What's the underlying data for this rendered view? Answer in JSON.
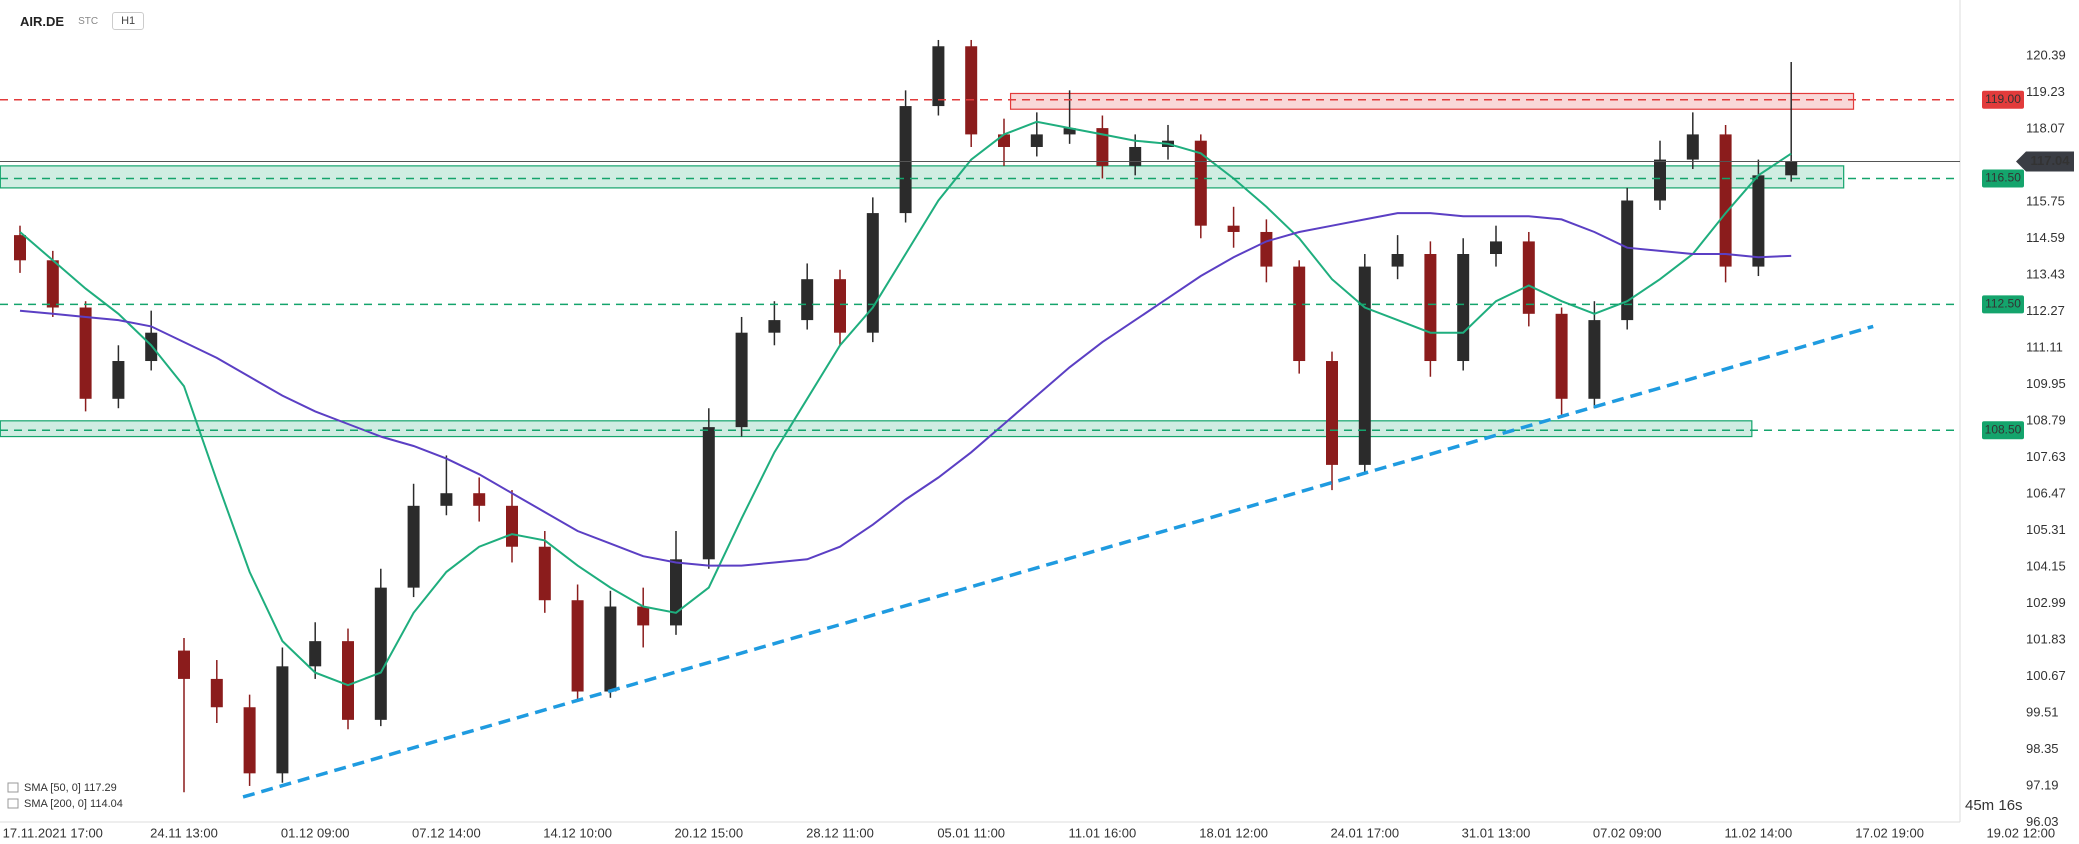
{
  "header": {
    "symbol": "AIR.DE",
    "market": "STC",
    "interval": "H1"
  },
  "chart_data": {
    "type": "candlestick",
    "categories": [
      null,
      "17.11.2021 17:00",
      null,
      null,
      null,
      "24.11 13:00",
      null,
      null,
      null,
      "01.12 09:00",
      null,
      null,
      null,
      "07.12 14:00",
      null,
      null,
      null,
      "14.12 10:00",
      null,
      null,
      null,
      "20.12 15:00",
      null,
      null,
      null,
      "28.12 11:00",
      null,
      null,
      null,
      "05.01 11:00",
      null,
      null,
      null,
      "11.01 16:00",
      null,
      null,
      null,
      "18.01 12:00",
      null,
      null,
      null,
      "24.01 17:00",
      null,
      null,
      null,
      "31.01 13:00",
      null,
      null,
      null,
      "07.02 09:00",
      null,
      null,
      null,
      "11.02 14:00",
      null,
      null,
      null,
      "17.02 19:00",
      null,
      null,
      null,
      "19.02 12:00"
    ],
    "open": [
      114.7,
      113.9,
      112.4,
      109.5,
      110.7,
      101.5,
      100.6,
      99.7,
      97.6,
      101.0,
      101.8,
      99.3,
      103.5,
      106.1,
      106.5,
      106.1,
      104.8,
      103.1,
      100.2,
      102.9,
      102.3,
      104.4,
      108.6,
      111.6,
      112.0,
      113.3,
      111.6,
      115.4,
      118.8,
      120.7,
      117.9,
      117.5,
      117.9,
      118.1,
      116.9,
      117.5,
      117.7,
      115.0,
      114.8,
      113.7,
      110.7,
      107.4,
      113.7,
      114.1,
      110.7,
      114.1,
      114.5,
      112.2,
      109.5,
      112.0,
      115.8,
      117.1,
      117.9,
      113.7,
      116.6,
      null,
      null,
      null,
      null,
      null,
      null,
      null
    ],
    "high": [
      115.0,
      114.2,
      112.6,
      111.2,
      112.3,
      101.9,
      101.2,
      100.1,
      101.6,
      102.4,
      102.2,
      104.1,
      106.8,
      107.7,
      107.0,
      106.6,
      105.3,
      103.6,
      103.4,
      103.5,
      105.3,
      109.2,
      112.1,
      112.6,
      113.8,
      113.6,
      115.9,
      119.3,
      120.9,
      120.9,
      118.4,
      118.6,
      119.3,
      118.5,
      117.9,
      118.2,
      117.9,
      115.6,
      115.2,
      113.9,
      111.0,
      114.1,
      114.7,
      114.5,
      114.6,
      115.0,
      114.8,
      112.4,
      112.6,
      116.2,
      117.7,
      118.6,
      118.2,
      117.1,
      120.2,
      null,
      null,
      null,
      null,
      null,
      null,
      null
    ],
    "low": [
      113.5,
      112.1,
      109.1,
      109.2,
      110.4,
      97.0,
      99.2,
      97.2,
      97.3,
      100.6,
      99.0,
      99.1,
      103.2,
      105.8,
      105.6,
      104.3,
      102.7,
      99.9,
      100.0,
      101.6,
      102.0,
      104.1,
      108.3,
      111.2,
      111.7,
      111.2,
      111.3,
      115.1,
      118.5,
      117.5,
      116.9,
      117.2,
      117.6,
      116.5,
      116.6,
      117.1,
      114.6,
      114.3,
      113.2,
      110.3,
      106.6,
      107.1,
      113.3,
      110.2,
      110.4,
      113.7,
      111.8,
      109.0,
      109.2,
      111.7,
      115.5,
      116.8,
      113.2,
      113.4,
      116.4,
      null,
      null,
      null,
      null,
      null,
      null,
      null
    ],
    "close": [
      113.9,
      112.4,
      109.5,
      110.7,
      111.6,
      100.6,
      99.7,
      97.6,
      101.0,
      101.8,
      99.3,
      103.5,
      106.1,
      106.5,
      106.1,
      104.8,
      103.1,
      100.2,
      102.9,
      102.3,
      104.4,
      108.6,
      111.6,
      112.0,
      113.3,
      111.6,
      115.4,
      118.8,
      120.7,
      117.9,
      117.5,
      117.9,
      118.1,
      116.9,
      117.5,
      117.7,
      115.0,
      114.8,
      113.7,
      110.7,
      107.4,
      113.7,
      114.1,
      110.7,
      114.1,
      114.5,
      112.2,
      109.5,
      112.0,
      115.8,
      117.1,
      117.9,
      113.7,
      116.6,
      117.04,
      null,
      null,
      null,
      null,
      null,
      null,
      null
    ],
    "up_color": "#2b2b2b",
    "down_color": "#8b1c1c",
    "lines": [
      {
        "name": "SMA [50, 0] 117.29",
        "color": "#1fae7e",
        "values": [
          114.8,
          113.9,
          113.0,
          112.2,
          111.2,
          109.9,
          106.9,
          104.0,
          101.8,
          100.8,
          100.4,
          100.8,
          102.7,
          104.0,
          104.8,
          105.2,
          105.0,
          104.2,
          103.5,
          102.9,
          102.7,
          103.5,
          105.7,
          107.8,
          109.5,
          111.2,
          112.4,
          114.1,
          115.8,
          117.1,
          117.9,
          118.3,
          118.1,
          117.9,
          117.7,
          117.6,
          117.3,
          116.5,
          115.6,
          114.6,
          113.3,
          112.4,
          112.0,
          111.6,
          111.6,
          112.6,
          113.1,
          112.6,
          112.2,
          112.6,
          113.3,
          114.1,
          115.4,
          116.6,
          117.29,
          null,
          null,
          null,
          null,
          null,
          null,
          null
        ]
      },
      {
        "name": "SMA [200, 0] 114.04",
        "color": "#5b3fc4",
        "values": [
          112.3,
          112.2,
          112.1,
          112.0,
          111.8,
          111.3,
          110.8,
          110.2,
          109.6,
          109.1,
          108.7,
          108.3,
          108.0,
          107.6,
          107.1,
          106.5,
          105.9,
          105.3,
          104.9,
          104.5,
          104.3,
          104.2,
          104.2,
          104.3,
          104.4,
          104.8,
          105.5,
          106.3,
          107.0,
          107.8,
          108.7,
          109.6,
          110.5,
          111.3,
          112.0,
          112.7,
          113.4,
          114.0,
          114.5,
          114.8,
          115.0,
          115.2,
          115.4,
          115.4,
          115.3,
          115.3,
          115.3,
          115.2,
          114.8,
          114.3,
          114.2,
          114.1,
          114.1,
          114.0,
          114.04,
          null,
          null,
          null,
          null,
          null,
          null,
          null
        ]
      }
    ],
    "levels": [
      {
        "value": 119.0,
        "label": "119.00",
        "color": "#e23b3b"
      },
      {
        "value": 116.5,
        "label": "116.50",
        "color": "#14a46c"
      },
      {
        "value": 112.5,
        "label": "112.50",
        "color": "#14a46c"
      },
      {
        "value": 108.5,
        "label": "108.50",
        "color": "#14a46c"
      }
    ],
    "zones": [
      {
        "range": [
          118.7,
          119.2
        ],
        "x": [
          30.2,
          55.9
        ],
        "color": "#e23b3b"
      },
      {
        "range": [
          116.2,
          116.9
        ],
        "x": [
          -0.6,
          55.6
        ],
        "color": "#14a46c"
      },
      {
        "range": [
          108.3,
          108.8
        ],
        "x": [
          -0.6,
          52.8
        ],
        "color": "#14a46c"
      }
    ],
    "trendline": {
      "x": [
        6.8,
        56.5
      ],
      "y": [
        96.85,
        111.8
      ],
      "color": "#1f9be0"
    },
    "last_price": {
      "value": 117.04,
      "label": "117.04"
    },
    "ylim": [
      95.8,
      122.17
    ],
    "yticks": [
      96.03,
      97.19,
      98.35,
      99.51,
      100.67,
      101.83,
      102.99,
      104.15,
      105.31,
      106.47,
      107.63,
      108.79,
      109.95,
      111.11,
      112.27,
      113.43,
      114.59,
      115.75,
      118.07,
      119.23,
      120.39
    ],
    "countdown": "45m 16s"
  }
}
